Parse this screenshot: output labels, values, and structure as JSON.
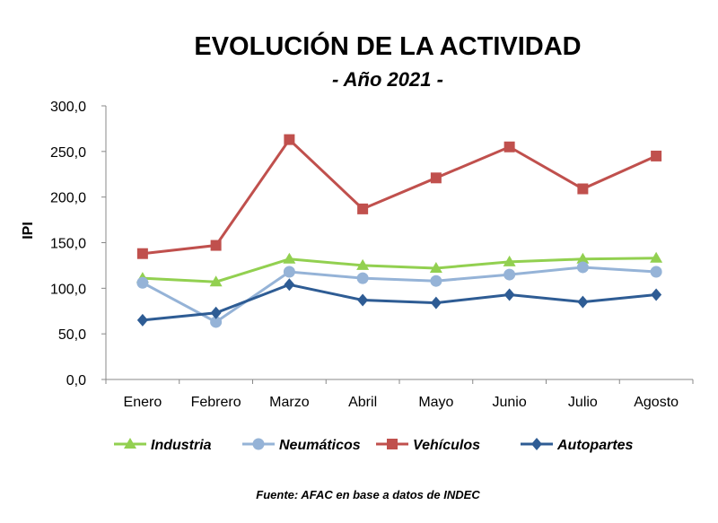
{
  "chart_data": {
    "type": "line",
    "title": "EVOLUCIÓN DE LA ACTIVIDAD",
    "subtitle": "- Año 2021 -",
    "ylabel": "IPI",
    "xlabel": "",
    "ylim": [
      0,
      300
    ],
    "yticks": [
      "0,0",
      "50,0",
      "100,0",
      "150,0",
      "200,0",
      "250,0",
      "300,0"
    ],
    "grid": false,
    "legend": "bottom",
    "categories": [
      "Enero",
      "Febrero",
      "Marzo",
      "Abril",
      "Mayo",
      "Junio",
      "Julio",
      "Agosto"
    ],
    "series": [
      {
        "name": "Industria",
        "color": "#92D050",
        "marker": "triangle",
        "values": [
          111,
          107,
          132,
          125,
          122,
          129,
          132,
          133
        ]
      },
      {
        "name": "Neumáticos",
        "color": "#95B3D7",
        "marker": "circle",
        "values": [
          106,
          63,
          118,
          111,
          108,
          115,
          123,
          118
        ]
      },
      {
        "name": "Vehículos",
        "color": "#C0504D",
        "marker": "square",
        "values": [
          138,
          147,
          263,
          187,
          221,
          255,
          209,
          245
        ]
      },
      {
        "name": "Autopartes",
        "color": "#2E5C94",
        "marker": "diamond",
        "values": [
          65,
          73,
          104,
          87,
          84,
          93,
          85,
          93
        ]
      }
    ],
    "source": "Fuente: AFAC en base a datos de INDEC"
  }
}
